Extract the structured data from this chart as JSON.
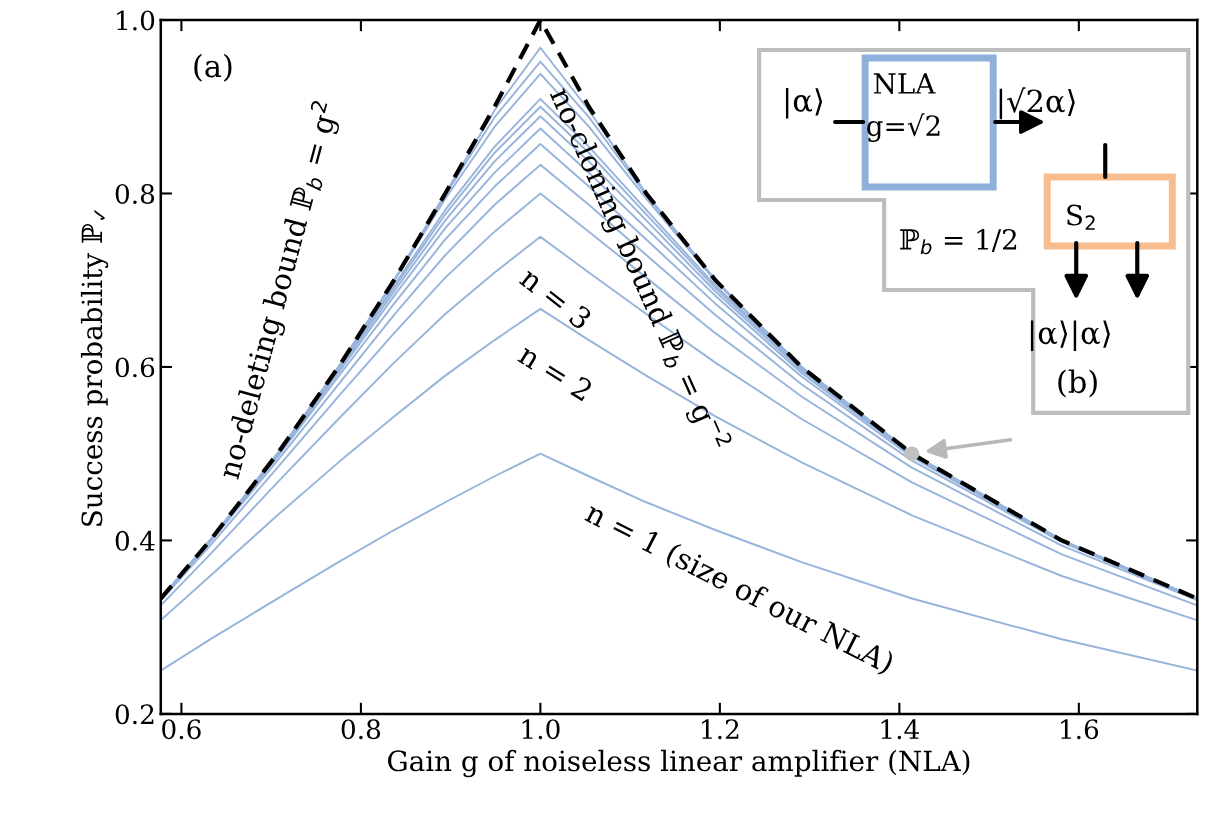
{
  "chart_data": {
    "type": "line",
    "xlabel": "Gain g of noiseless linear amplifier (NLA)",
    "ylabel": "Success probability ℙ$_{✓}$",
    "x": [
      0.577,
      0.632,
      0.707,
      0.775,
      0.837,
      0.894,
      0.949,
      1.0,
      1.054,
      1.118,
      1.195,
      1.291,
      1.414,
      1.581,
      1.732
    ],
    "xlim": [
      0.577,
      1.732
    ],
    "ylim": [
      0.2,
      1.0
    ],
    "xticks": [
      0.6,
      0.8,
      {
        "value": 1,
        "label": "1.0"
      },
      1.2,
      1.4,
      1.6
    ],
    "yticks": [
      0.2,
      0.4,
      0.6,
      0.8,
      {
        "value": 1,
        "label": "1.0"
      }
    ],
    "grid": false,
    "legend": false,
    "marker": "none",
    "series": [
      {
        "color": "#98b4dc",
        "values": [
          0.25,
          0.286,
          0.333,
          0.375,
          0.412,
          0.444,
          0.474,
          0.5,
          0.474,
          0.444,
          0.412,
          0.375,
          0.333,
          0.286,
          0.25
        ]
      },
      {
        "color": "#98b4dc",
        "values": [
          0.308,
          0.359,
          0.429,
          0.49,
          0.543,
          0.59,
          0.631,
          0.667,
          0.631,
          0.59,
          0.543,
          0.49,
          0.429,
          0.359,
          0.308
        ]
      },
      {
        "color": "#98b4dc",
        "values": [
          0.325,
          0.384,
          0.467,
          0.54,
          0.605,
          0.661,
          0.709,
          0.75,
          0.709,
          0.661,
          0.605,
          0.54,
          0.467,
          0.384,
          0.325
        ]
      },
      {
        "color": "#98b4dc",
        "values": [
          0.331,
          0.394,
          0.484,
          0.566,
          0.639,
          0.703,
          0.756,
          0.8,
          0.756,
          0.703,
          0.639,
          0.566,
          0.484,
          0.394,
          0.331
        ]
      },
      {
        "color": "#98b4dc",
        "values": [
          0.332,
          0.398,
          0.492,
          0.58,
          0.66,
          0.729,
          0.787,
          0.833,
          0.787,
          0.729,
          0.66,
          0.58,
          0.492,
          0.398,
          0.332
        ]
      },
      {
        "color": "#98b4dc",
        "values": [
          0.333,
          0.399,
          0.496,
          0.589,
          0.673,
          0.747,
          0.808,
          0.857,
          0.808,
          0.747,
          0.673,
          0.589,
          0.496,
          0.399,
          0.333
        ]
      },
      {
        "color": "#98b4dc",
        "values": [
          0.333,
          0.4,
          0.498,
          0.593,
          0.682,
          0.76,
          0.824,
          0.875,
          0.824,
          0.76,
          0.682,
          0.593,
          0.498,
          0.4,
          0.333
        ]
      },
      {
        "color": "#98b4dc",
        "values": [
          0.333,
          0.4,
          0.499,
          0.596,
          0.687,
          0.769,
          0.837,
          0.889,
          0.837,
          0.769,
          0.687,
          0.596,
          0.499,
          0.4,
          0.333
        ]
      },
      {
        "color": "#98b4dc",
        "values": [
          0.333,
          0.4,
          0.499,
          0.598,
          0.691,
          0.776,
          0.847,
          0.9,
          0.847,
          0.776,
          0.691,
          0.598,
          0.499,
          0.4,
          0.333
        ]
      },
      {
        "color": "#98b4dc",
        "values": [
          0.333,
          0.4,
          0.5,
          0.599,
          0.694,
          0.781,
          0.854,
          0.909,
          0.854,
          0.781,
          0.694,
          0.599,
          0.5,
          0.4,
          0.333
        ]
      },
      {
        "color": "#98b4dc",
        "values": [
          0.333,
          0.4,
          0.5,
          0.6,
          0.699,
          0.794,
          0.877,
          0.938,
          0.877,
          0.794,
          0.699,
          0.6,
          0.5,
          0.4,
          0.333
        ]
      },
      {
        "color": "#98b4dc",
        "values": [
          0.333,
          0.4,
          0.5,
          0.6,
          0.7,
          0.798,
          0.888,
          0.952,
          0.888,
          0.798,
          0.7,
          0.6,
          0.5,
          0.4,
          0.333
        ]
      },
      {
        "color": "#98b4dc",
        "values": [
          0.333,
          0.4,
          0.5,
          0.6,
          0.7,
          0.8,
          0.896,
          0.968,
          0.896,
          0.8,
          0.7,
          0.6,
          0.5,
          0.4,
          0.333
        ]
      },
      {
        "type": "scatter",
        "color": "#c0c0c0",
        "marker": "circle",
        "x": [
          1.414
        ],
        "values": [
          0.5
        ]
      },
      {
        "color": "#000000",
        "line_style": "dashed",
        "values": [
          0.333,
          0.4,
          0.5,
          0.6,
          0.7,
          0.8,
          0.9,
          1.0,
          0.9,
          0.8,
          0.7,
          0.6,
          0.5,
          0.4,
          0.333
        ]
      }
    ],
    "annotations": [
      "(a)",
      "no-deleting bound ℙ$_{b}$ = g$^{2}$",
      "no-cloning bound ℙ$_{b}$ = g$^{−2}$",
      "n = 3",
      "n = 2",
      "n = 1 (size of our NLA)",
      "(b)",
      "|α⟩",
      "NLA",
      "g=√2",
      "|√2α⟩",
      "S$_{2}$",
      "ℙ$_{b}$ = 1/2",
      "|α⟩|α⟩"
    ]
  }
}
